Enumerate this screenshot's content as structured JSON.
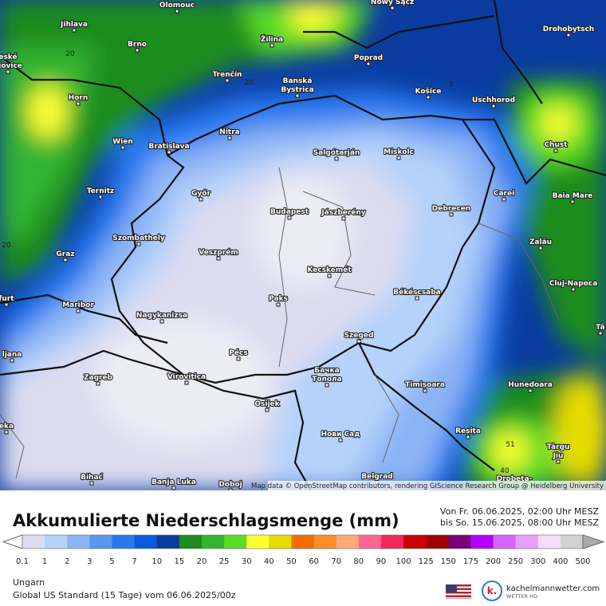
{
  "map": {
    "cities": [
      [
        "Olomouc"
      ],
      [
        "Nowy Sącz"
      ],
      [
        "Jihlava"
      ],
      [
        "Brno"
      ],
      [
        "Žilina"
      ],
      [
        "Drohobytsch"
      ],
      [
        "eské",
        "ejovice"
      ],
      [
        "Poprad"
      ],
      [
        "Trenčín"
      ],
      [
        "Banská",
        "Bystrica"
      ],
      [
        "Košice"
      ],
      [
        "Uschhorod"
      ],
      [
        "Horn"
      ],
      [
        "Nitra"
      ],
      [
        "Wien"
      ],
      [
        "Bratislava"
      ],
      [
        "Chust"
      ],
      [
        "Salgótarján"
      ],
      [
        "Miskolc"
      ],
      [
        "Ternitz"
      ],
      [
        "Győr"
      ],
      [
        "Carei"
      ],
      [
        "Baia Mare"
      ],
      [
        "Budapest"
      ],
      [
        "Jászberény"
      ],
      [
        "Debrecen"
      ],
      [
        "Szombathely"
      ],
      [
        "Zalău"
      ],
      [
        "Graz"
      ],
      [
        "Veszprém"
      ],
      [
        "Kecskemét"
      ],
      [
        "Cluj-Napoca"
      ],
      [
        "Békéscsaba"
      ],
      [
        "Paks"
      ],
      [
        "furt"
      ],
      [
        "Maribor"
      ],
      [
        "Nagykanizsa"
      ],
      [
        "Szeged"
      ],
      [
        "Tâ"
      ],
      [
        "Pécs"
      ],
      [
        "ljana"
      ],
      [
        "Бачка",
        "Топола"
      ],
      [
        "Zagreb"
      ],
      [
        "Virovitica"
      ],
      [
        "Hunedoara"
      ],
      [
        "Timișoara"
      ],
      [
        "Osijek"
      ],
      [
        "eka"
      ],
      [
        "Reșița"
      ],
      [
        "Нови Сад"
      ],
      [
        "Târgu",
        "Jiu"
      ],
      [
        "Bihać"
      ],
      [
        "Banja Luka"
      ],
      [
        "Doboj"
      ],
      [
        "Belgrad"
      ],
      [
        "Drobeta-"
      ]
    ],
    "contour_labels": [
      "20",
      "20",
      "20",
      "5",
      "51",
      "40"
    ],
    "attribution": "Map data © OpenStreetMap contributors, rendering GIScience Research Group @ Heidelberg University"
  },
  "legend": {
    "title": "Akkumulierte Niederschlagsmenge (mm)",
    "period": [
      "Von Fr. 06.06.2025, 02:00 Uhr MESZ",
      "bis So. 15.06.2025, 08:00 Uhr MESZ"
    ],
    "scale": [
      0.1,
      1,
      2,
      3,
      5,
      7,
      10,
      15,
      20,
      25,
      30,
      40,
      50,
      60,
      70,
      80,
      90,
      100,
      125,
      150,
      175,
      200,
      250,
      300,
      400,
      500
    ]
  },
  "footer": {
    "region": "Ungarn",
    "model": "Global US Standard (15 Tage) vom 06.06.2025/00z",
    "brand": "kachelmannwetter.com",
    "brand_sub": "WETTER HD"
  }
}
